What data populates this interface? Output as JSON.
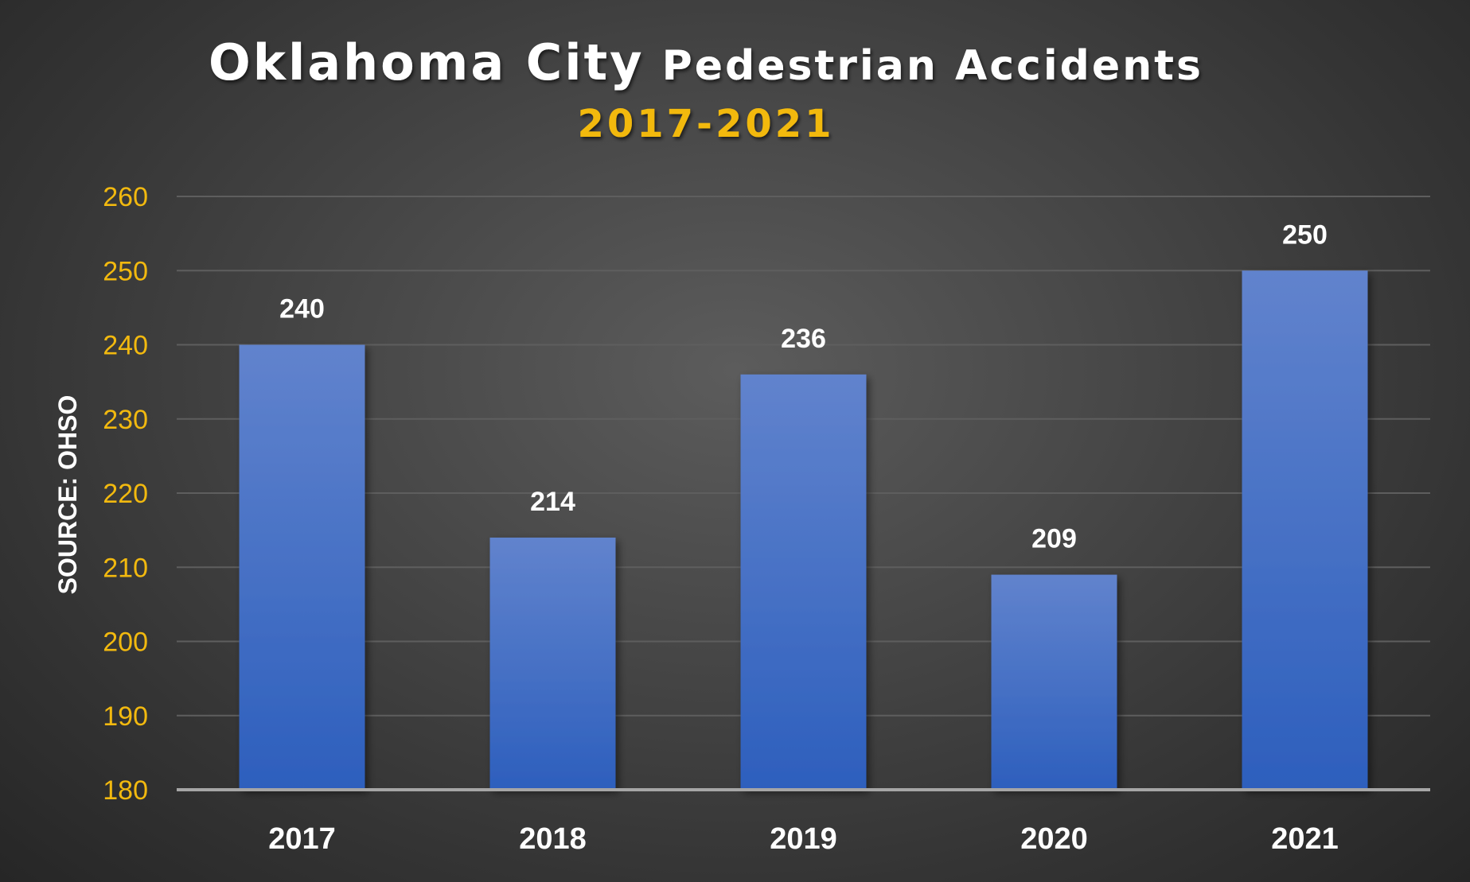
{
  "chart_data": {
    "type": "bar",
    "title_part1": "Oklahoma City",
    "title_part2": "Pedestrian Accidents",
    "subtitle": "2017-2021",
    "ylabel": "SOURCE: OHSO",
    "xlabel": "",
    "categories": [
      "2017",
      "2018",
      "2019",
      "2020",
      "2021"
    ],
    "values": [
      240,
      214,
      236,
      209,
      250
    ],
    "ylim": [
      180,
      260
    ],
    "yticks": [
      180,
      190,
      200,
      210,
      220,
      230,
      240,
      250,
      260
    ],
    "grid": true,
    "legend": "none",
    "colors": {
      "bar_top": "#6183cd",
      "bar_bottom": "#2d5fbd",
      "title": "#ffffff",
      "subtitle": "#f2b90f",
      "tick_y": "#f2b90f",
      "tick_x": "#ffffff",
      "gridline": "#5e5e5e",
      "axis": "#a6a6a6"
    }
  }
}
